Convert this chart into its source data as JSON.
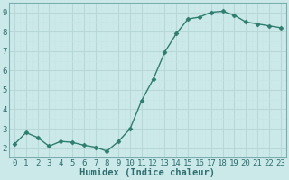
{
  "x": [
    0,
    1,
    2,
    3,
    4,
    5,
    6,
    7,
    8,
    9,
    10,
    11,
    12,
    13,
    14,
    15,
    16,
    17,
    18,
    19,
    20,
    21,
    22,
    23
  ],
  "y": [
    2.2,
    2.8,
    2.55,
    2.1,
    2.35,
    2.3,
    2.15,
    2.05,
    1.85,
    2.35,
    3.0,
    4.45,
    5.55,
    6.95,
    7.9,
    8.65,
    8.75,
    9.0,
    9.05,
    8.85,
    8.5,
    8.4,
    8.3,
    8.2
  ],
  "line_color": "#2e7d6e",
  "marker": "D",
  "marker_size": 2.5,
  "bg_color": "#cce9e9",
  "grid_color_major": "#b8d8d8",
  "grid_color_minor": "#c8e4e4",
  "xlabel": "Humidex (Indice chaleur)",
  "ylim": [
    1.5,
    9.5
  ],
  "xlim": [
    -0.5,
    23.5
  ],
  "yticks": [
    2,
    3,
    4,
    5,
    6,
    7,
    8,
    9
  ],
  "xticks": [
    0,
    1,
    2,
    3,
    4,
    5,
    6,
    7,
    8,
    9,
    10,
    11,
    12,
    13,
    14,
    15,
    16,
    17,
    18,
    19,
    20,
    21,
    22,
    23
  ],
  "xlabel_fontsize": 7.5,
  "tick_fontsize": 6.5,
  "spine_color": "#7aadad",
  "text_color": "#2e6e6e"
}
